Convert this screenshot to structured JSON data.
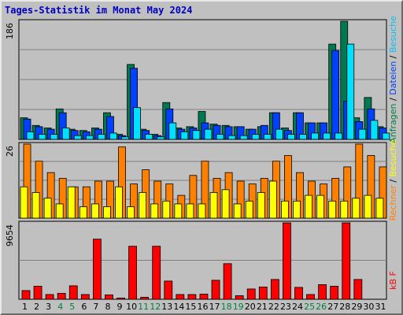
{
  "title": "Tages-Statistik im Monat May 2024",
  "legends": {
    "top": [
      {
        "text": "Anfragen",
        "color": "#008040"
      },
      {
        "text": " / ",
        "color": "#000000"
      },
      {
        "text": "Dateien",
        "color": "#0040ff"
      },
      {
        "text": " / ",
        "color": "#000000"
      },
      {
        "text": "Besuche",
        "color": "#00c0ff"
      }
    ],
    "middle": [
      {
        "text": "Rechner",
        "color": "#ff8000"
      },
      {
        "text": " / ",
        "color": "#000000"
      },
      {
        "text": "Besuche",
        "color": "#ffff00"
      }
    ],
    "bottom": [
      {
        "text": "kB F",
        "color": "#ff0000"
      }
    ]
  },
  "chart_data": [
    {
      "type": "bar",
      "panel": "top",
      "ymax_label": "186",
      "ylim": [
        0,
        186
      ],
      "categories": [
        "1",
        "2",
        "3",
        "4",
        "5",
        "6",
        "7",
        "8",
        "9",
        "10",
        "11",
        "12",
        "13",
        "14",
        "15",
        "16",
        "17",
        "18",
        "19",
        "20",
        "21",
        "22",
        "23",
        "24",
        "25",
        "26",
        "27",
        "28",
        "29",
        "30",
        "31"
      ],
      "series": [
        {
          "name": "Anfragen",
          "color": "#007850",
          "values": [
            34,
            22,
            18,
            48,
            16,
            14,
            18,
            42,
            8,
            118,
            16,
            8,
            58,
            18,
            20,
            44,
            24,
            22,
            20,
            16,
            20,
            42,
            18,
            42,
            26,
            26,
            150,
            186,
            34,
            66,
            20
          ]
        },
        {
          "name": "Dateien",
          "color": "#0040ff",
          "values": [
            32,
            20,
            16,
            42,
            14,
            12,
            16,
            36,
            6,
            112,
            14,
            6,
            48,
            16,
            18,
            26,
            22,
            20,
            20,
            16,
            22,
            42,
            14,
            42,
            26,
            26,
            140,
            60,
            28,
            48,
            18
          ]
        },
        {
          "name": "Besuche",
          "color": "#00e0ff",
          "values": [
            12,
            8,
            8,
            18,
            6,
            6,
            8,
            10,
            4,
            50,
            8,
            4,
            26,
            12,
            14,
            16,
            8,
            6,
            6,
            8,
            8,
            16,
            8,
            8,
            10,
            10,
            10,
            150,
            16,
            30,
            10
          ]
        }
      ]
    },
    {
      "type": "bar",
      "panel": "middle",
      "ymax_label": "26",
      "ylim": [
        0,
        26
      ],
      "categories": [
        "1",
        "2",
        "3",
        "4",
        "5",
        "6",
        "7",
        "8",
        "9",
        "10",
        "11",
        "12",
        "13",
        "14",
        "15",
        "16",
        "17",
        "18",
        "19",
        "20",
        "21",
        "22",
        "23",
        "24",
        "25",
        "26",
        "27",
        "28",
        "29",
        "30",
        "31"
      ],
      "series": [
        {
          "name": "Rechner",
          "color": "#ff8000",
          "values": [
            26,
            20,
            16,
            14,
            11,
            11,
            13,
            13,
            25,
            12,
            17,
            13,
            12,
            8,
            15,
            20,
            14,
            16,
            13,
            12,
            14,
            20,
            22,
            16,
            13,
            12,
            14,
            18,
            26,
            22,
            18
          ]
        },
        {
          "name": "Besuche",
          "color": "#ffff00",
          "values": [
            11,
            9,
            7,
            5,
            11,
            4,
            5,
            4,
            11,
            4,
            9,
            5,
            6,
            5,
            5,
            5,
            9,
            10,
            5,
            6,
            9,
            13,
            6,
            6,
            8,
            8,
            6,
            6,
            7,
            8,
            7
          ]
        }
      ]
    },
    {
      "type": "bar",
      "panel": "bottom",
      "ymax_label": "9654",
      "ylim": [
        0,
        9654
      ],
      "categories": [
        "1",
        "2",
        "3",
        "4",
        "5",
        "6",
        "7",
        "8",
        "9",
        "10",
        "11",
        "12",
        "13",
        "14",
        "15",
        "16",
        "17",
        "18",
        "19",
        "20",
        "21",
        "22",
        "23",
        "24",
        "25",
        "26",
        "27",
        "28",
        "29",
        "30",
        "31"
      ],
      "series": [
        {
          "name": "kB F",
          "color": "#ff0000",
          "values": [
            1100,
            1650,
            600,
            750,
            1700,
            600,
            7600,
            550,
            150,
            6700,
            250,
            6700,
            2300,
            600,
            600,
            650,
            2400,
            4500,
            450,
            1300,
            1550,
            2500,
            9654,
            1500,
            600,
            1850,
            1650,
            9654,
            2500,
            0,
            0
          ]
        }
      ]
    }
  ],
  "weekend_days": [
    4,
    5,
    11,
    12,
    18,
    19,
    25,
    26
  ],
  "label_colors": {
    "weekday": "#000000",
    "weekend": "#008040"
  }
}
